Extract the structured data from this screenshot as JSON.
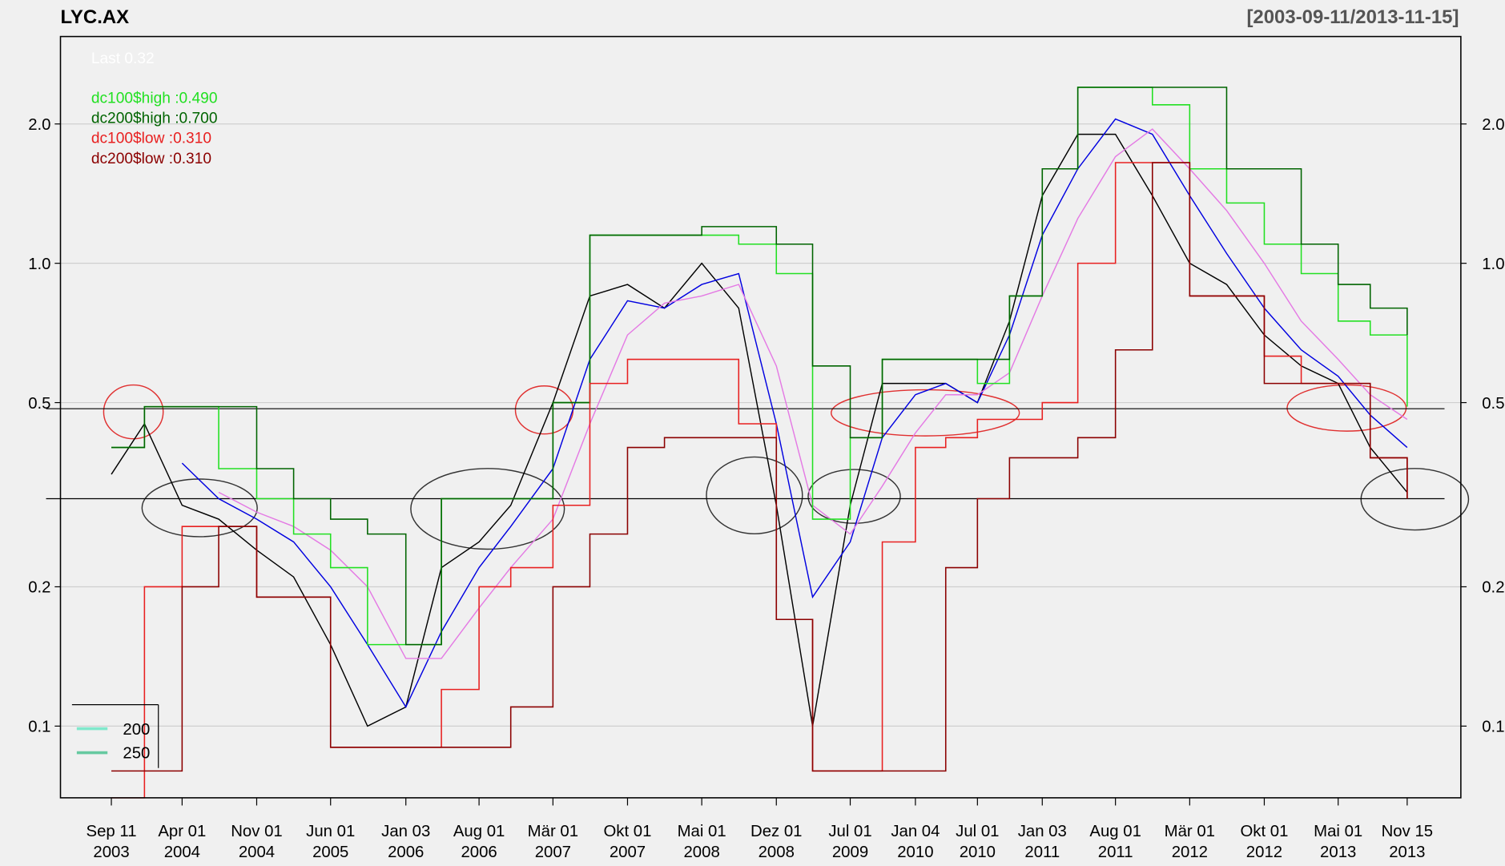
{
  "chart_data": {
    "type": "line",
    "title": "LYC.AX",
    "range_label": "[2003-09-11/2013-11-15]",
    "last_label": "Last 0.32",
    "log_y": true,
    "grid": true,
    "xlim": [
      "2003-04-18",
      "2014-04-18"
    ],
    "ylim": [
      0.07,
      3.09
    ],
    "yticks": [
      0.1,
      0.2,
      0.5,
      {
        "value": 1.0,
        "label": "1.0"
      },
      {
        "value": 2.0,
        "label": "2.0"
      }
    ],
    "xticks": [
      {
        "value": "2003-09-11",
        "label": [
          "Sep 11",
          "2003"
        ]
      },
      {
        "value": "2004-04-01",
        "label": [
          "Apr 01",
          "2004"
        ]
      },
      {
        "value": "2004-11-01",
        "label": [
          "Nov 01",
          "2004"
        ]
      },
      {
        "value": "2005-06-01",
        "label": [
          "Jun 01",
          "2005"
        ]
      },
      {
        "value": "2006-01-03",
        "label": [
          "Jan 03",
          "2006"
        ]
      },
      {
        "value": "2006-08-01",
        "label": [
          "Aug 01",
          "2006"
        ]
      },
      {
        "value": "2007-03-01",
        "label": [
          "Mär 01",
          "2007"
        ]
      },
      {
        "value": "2007-10-01",
        "label": [
          "Okt 01",
          "2007"
        ]
      },
      {
        "value": "2008-05-01",
        "label": [
          "Mai 01",
          "2008"
        ]
      },
      {
        "value": "2008-12-01",
        "label": [
          "Dez 01",
          "2008"
        ]
      },
      {
        "value": "2009-07-01",
        "label": [
          "Jul 01",
          "2009"
        ]
      },
      {
        "value": "2010-01-04",
        "label": [
          "Jan 04",
          "2010"
        ]
      },
      {
        "value": "2010-07-01",
        "label": [
          "Jul 01",
          "2010"
        ]
      },
      {
        "value": "2011-01-03",
        "label": [
          "Jan 03",
          "2011"
        ]
      },
      {
        "value": "2011-08-01",
        "label": [
          "Aug 01",
          "2011"
        ]
      },
      {
        "value": "2012-03-01",
        "label": [
          "Mär 01",
          "2012"
        ]
      },
      {
        "value": "2012-10-01",
        "label": [
          "Okt 01",
          "2012"
        ]
      },
      {
        "value": "2013-05-01",
        "label": [
          "Mai 01",
          "2013"
        ]
      },
      {
        "value": "2013-11-15",
        "label": [
          "Nov 15",
          "2013"
        ]
      }
    ],
    "x": [
      "2003-09-11",
      "2003-12-15",
      "2004-04-01",
      "2004-07-15",
      "2004-11-01",
      "2005-02-15",
      "2005-06-01",
      "2005-09-15",
      "2006-01-03",
      "2006-04-15",
      "2006-08-01",
      "2006-10-31",
      "2007-03-01",
      "2007-06-15",
      "2007-10-01",
      "2008-01-15",
      "2008-05-01",
      "2008-08-15",
      "2008-12-01",
      "2009-03-15",
      "2009-07-01",
      "2009-10-01",
      "2010-01-04",
      "2010-04-01",
      "2010-07-01",
      "2010-10-01",
      "2011-01-03",
      "2011-04-15",
      "2011-08-01",
      "2011-11-15",
      "2012-03-01",
      "2012-06-15",
      "2012-10-01",
      "2013-01-15",
      "2013-05-01",
      "2013-08-01",
      "2013-11-15"
    ],
    "series": [
      {
        "color": "#000000",
        "step": false,
        "width": 1.2,
        "values": [
          0.35,
          0.45,
          0.3,
          0.28,
          0.24,
          0.21,
          0.15,
          0.1,
          0.11,
          0.22,
          0.25,
          0.3,
          0.5,
          0.85,
          0.9,
          0.8,
          1.0,
          0.8,
          0.3,
          0.1,
          0.3,
          0.55,
          0.55,
          0.55,
          0.5,
          0.75,
          1.4,
          1.9,
          1.9,
          1.4,
          1.0,
          0.9,
          0.7,
          0.6,
          0.55,
          0.4,
          0.32
        ]
      },
      {
        "color": "#0000e0",
        "step": false,
        "width": 1.2,
        "values": [
          null,
          null,
          0.37,
          0.31,
          0.28,
          0.25,
          0.2,
          0.15,
          0.11,
          0.16,
          0.22,
          0.27,
          0.36,
          0.62,
          0.83,
          0.8,
          0.9,
          0.95,
          0.45,
          0.19,
          0.25,
          0.42,
          0.52,
          0.55,
          0.5,
          0.7,
          1.15,
          1.6,
          2.05,
          1.9,
          1.4,
          1.05,
          0.8,
          0.65,
          0.57,
          0.47,
          0.4
        ]
      },
      {
        "color": "#e47ae4",
        "step": false,
        "width": 1.2,
        "values": [
          null,
          null,
          null,
          0.32,
          0.29,
          0.27,
          0.24,
          0.2,
          0.14,
          0.14,
          0.18,
          0.22,
          0.28,
          0.45,
          0.7,
          0.82,
          0.85,
          0.9,
          0.6,
          0.3,
          0.26,
          0.33,
          0.43,
          0.52,
          0.52,
          0.58,
          0.85,
          1.25,
          1.7,
          1.95,
          1.6,
          1.3,
          1.0,
          0.75,
          0.62,
          0.52,
          0.46
        ]
      },
      {
        "name": "dc100$high :0.490",
        "color": "#22e022",
        "step": true,
        "width": 1.3,
        "values": [
          0.4,
          0.49,
          0.49,
          0.36,
          0.31,
          0.26,
          0.22,
          0.15,
          0.15,
          0.31,
          0.31,
          0.31,
          0.5,
          1.15,
          1.15,
          1.15,
          1.15,
          1.1,
          0.95,
          0.28,
          0.42,
          0.62,
          0.62,
          0.62,
          0.55,
          0.85,
          1.6,
          2.4,
          2.4,
          2.2,
          1.6,
          1.35,
          1.1,
          0.95,
          0.75,
          0.7,
          0.49
        ]
      },
      {
        "name": "dc200$high :0.700",
        "color": "#006400",
        "step": true,
        "width": 1.3,
        "values": [
          0.4,
          0.49,
          0.49,
          0.49,
          0.36,
          0.31,
          0.28,
          0.26,
          0.15,
          0.31,
          0.31,
          0.31,
          0.5,
          1.15,
          1.15,
          1.15,
          1.2,
          1.2,
          1.1,
          0.6,
          0.42,
          0.62,
          0.62,
          0.62,
          0.62,
          0.85,
          1.6,
          2.4,
          2.4,
          2.4,
          2.4,
          1.6,
          1.6,
          1.1,
          0.9,
          0.8,
          0.7
        ]
      },
      {
        "name": "dc100$low :0.310",
        "color": "#e82020",
        "step": true,
        "width": 1.3,
        "values": [
          0.07,
          0.2,
          0.27,
          0.27,
          0.19,
          0.19,
          0.09,
          0.09,
          0.09,
          0.12,
          0.2,
          0.22,
          0.3,
          0.55,
          0.62,
          0.62,
          0.62,
          0.45,
          0.17,
          0.08,
          0.08,
          0.25,
          0.4,
          0.42,
          0.46,
          0.46,
          0.5,
          1.0,
          1.65,
          1.65,
          0.85,
          0.85,
          0.63,
          0.55,
          0.55,
          0.38,
          0.31
        ]
      },
      {
        "name": "dc200$low :0.310",
        "color": "#8b0000",
        "step": true,
        "width": 1.3,
        "values": [
          0.08,
          0.08,
          0.2,
          0.27,
          0.19,
          0.19,
          0.09,
          0.09,
          0.09,
          0.09,
          0.09,
          0.11,
          0.2,
          0.26,
          0.4,
          0.42,
          0.42,
          0.42,
          0.17,
          0.08,
          0.08,
          0.08,
          0.08,
          0.22,
          0.31,
          0.38,
          0.38,
          0.42,
          0.65,
          1.65,
          0.85,
          0.85,
          0.55,
          0.55,
          0.55,
          0.38,
          0.31
        ]
      }
    ],
    "hlines": [
      0.485,
      0.31
    ],
    "legend2": [
      {
        "name": "200",
        "color": "#80e8cc"
      },
      {
        "name": "250",
        "color": "#66c9a0"
      }
    ]
  }
}
